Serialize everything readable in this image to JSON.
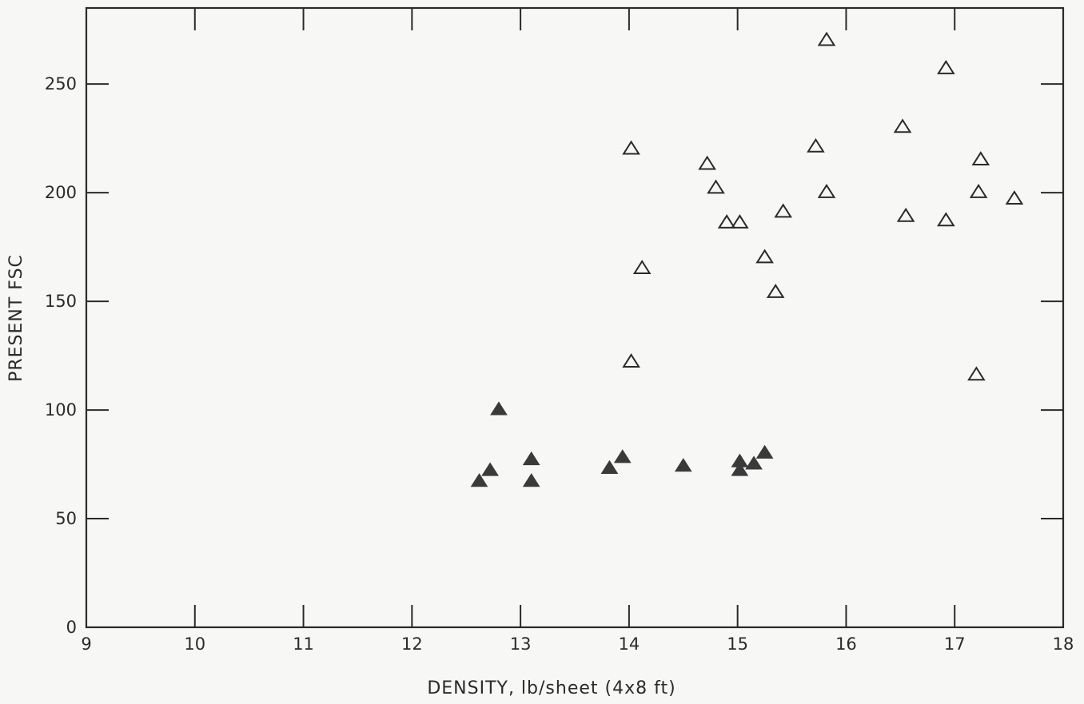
{
  "chart_data": {
    "type": "scatter",
    "title": "",
    "xlabel": "DENSITY,  lb/sheet (4x8 ft)",
    "ylabel": "PRESENT FSC",
    "xlim": [
      9,
      18
    ],
    "ylim": [
      0,
      285
    ],
    "x_ticks": [
      "9",
      "10",
      "11",
      "12",
      "13",
      "14",
      "15",
      "16",
      "17",
      "18"
    ],
    "y_ticks": [
      "0",
      "50",
      "100",
      "150",
      "200",
      "250"
    ],
    "grid": false,
    "legend": "none",
    "series": [
      {
        "marker": "open-triangle",
        "color": "#2a2a2a",
        "points": [
          {
            "x": 14.02,
            "y": 220
          },
          {
            "x": 14.12,
            "y": 165
          },
          {
            "x": 14.02,
            "y": 122
          },
          {
            "x": 14.72,
            "y": 213
          },
          {
            "x": 14.8,
            "y": 202
          },
          {
            "x": 14.9,
            "y": 186
          },
          {
            "x": 15.02,
            "y": 186
          },
          {
            "x": 15.25,
            "y": 170
          },
          {
            "x": 15.35,
            "y": 154
          },
          {
            "x": 15.42,
            "y": 191
          },
          {
            "x": 15.72,
            "y": 221
          },
          {
            "x": 15.82,
            "y": 200
          },
          {
            "x": 15.82,
            "y": 270
          },
          {
            "x": 16.52,
            "y": 230
          },
          {
            "x": 16.55,
            "y": 189
          },
          {
            "x": 16.92,
            "y": 257
          },
          {
            "x": 16.92,
            "y": 187
          },
          {
            "x": 17.2,
            "y": 116
          },
          {
            "x": 17.22,
            "y": 200
          },
          {
            "x": 17.24,
            "y": 215
          },
          {
            "x": 17.55,
            "y": 197
          }
        ]
      },
      {
        "marker": "filled-triangle",
        "color": "#3a3a3a",
        "points": [
          {
            "x": 12.62,
            "y": 67
          },
          {
            "x": 12.72,
            "y": 72
          },
          {
            "x": 12.8,
            "y": 100
          },
          {
            "x": 13.1,
            "y": 77
          },
          {
            "x": 13.1,
            "y": 67
          },
          {
            "x": 13.82,
            "y": 73
          },
          {
            "x": 13.94,
            "y": 78
          },
          {
            "x": 14.5,
            "y": 74
          },
          {
            "x": 15.02,
            "y": 76
          },
          {
            "x": 15.02,
            "y": 72
          },
          {
            "x": 15.15,
            "y": 75
          },
          {
            "x": 15.25,
            "y": 80
          }
        ]
      }
    ]
  }
}
